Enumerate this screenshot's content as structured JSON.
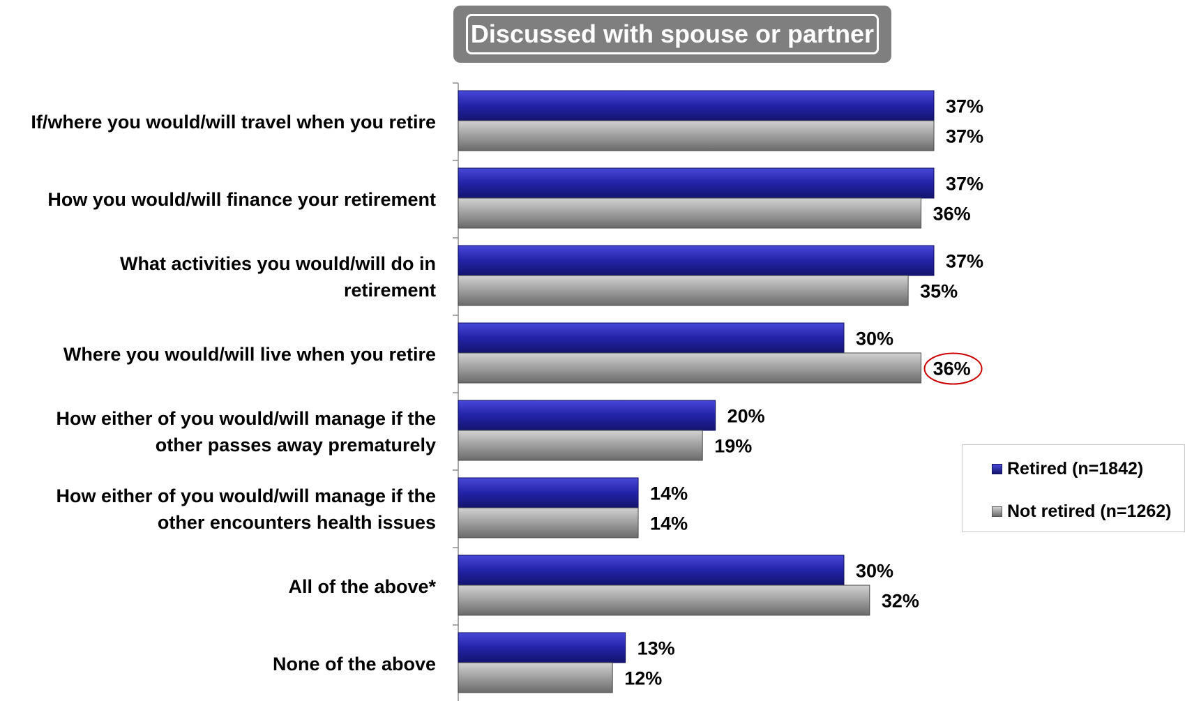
{
  "chart_data": {
    "type": "bar",
    "orientation": "horizontal",
    "title": "Discussed with spouse or partner",
    "categories": [
      "If/where you would/will travel when you retire",
      "How you would/will finance your retirement",
      "What activities you would/will do in retirement",
      "Where you would/will live when you retire",
      "How either of you would/will manage if the other passes away prematurely",
      "How either of you would/will manage if the other encounters health issues",
      "All of the above*",
      "None of the above"
    ],
    "category_lines": [
      [
        "If/where you would/will travel when you retire"
      ],
      [
        "How you would/will finance your retirement"
      ],
      [
        "What activities you would/will do in",
        "retirement"
      ],
      [
        "Where you would/will live when you retire"
      ],
      [
        "How either of you would/will manage if the",
        "other passes away prematurely"
      ],
      [
        "How either of you would/will manage if the",
        "other encounters health issues"
      ],
      [
        "All of the above*"
      ],
      [
        "None of the above"
      ]
    ],
    "series": [
      {
        "name": "Retired (n=1842)",
        "color": "#2b2ba8",
        "values": [
          37,
          37,
          37,
          30,
          20,
          14,
          30,
          13
        ],
        "labels": [
          "37%",
          "37%",
          "37%",
          "30%",
          "20%",
          "14%",
          "30%",
          "13%"
        ]
      },
      {
        "name": "Not retired (n=1262)",
        "color": "#9a9a9a",
        "values": [
          37,
          36,
          35,
          36,
          19,
          14,
          32,
          12
        ],
        "labels": [
          "37%",
          "36%",
          "35%",
          "36%",
          "19%",
          "14%",
          "32%",
          "12%"
        ]
      }
    ],
    "highlight": {
      "series": 1,
      "category": 3,
      "color": "#cc0000"
    },
    "xlim": [
      0,
      37
    ],
    "grid": false,
    "legend_position": "right"
  }
}
